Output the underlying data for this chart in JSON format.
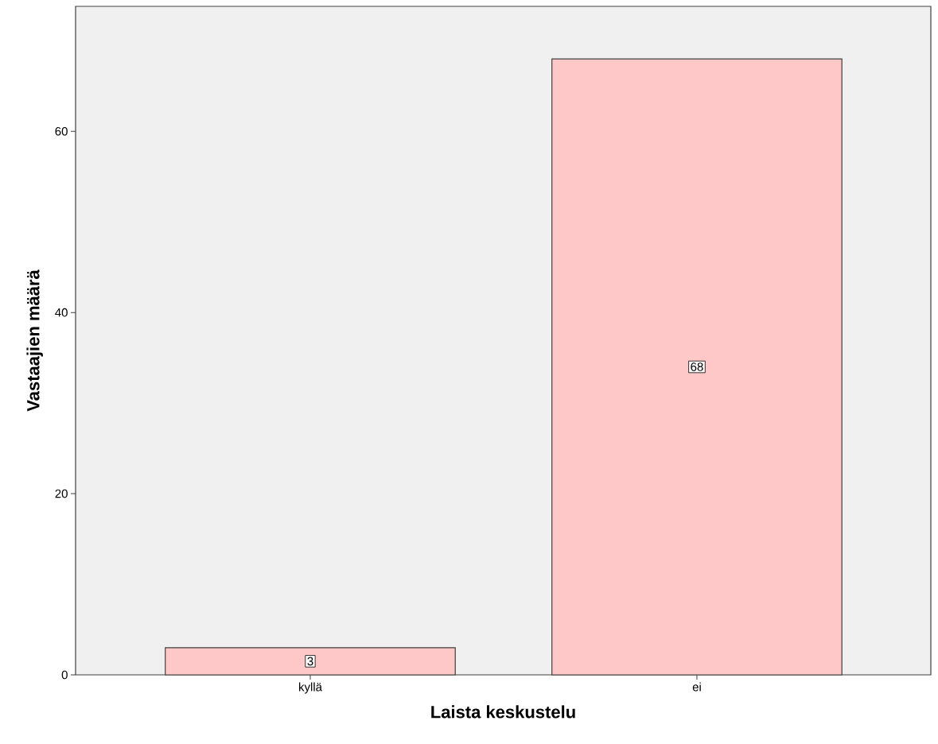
{
  "chart_data": {
    "type": "bar",
    "xlabel": "Laista keskustelu",
    "ylabel": "Vastaajien määrä",
    "categories": [
      "kyllä",
      "ei"
    ],
    "values": [
      3,
      68
    ],
    "color": "#ffc8c8",
    "ylim": [
      0,
      73.8
    ],
    "yticks": [
      0,
      20,
      40,
      60
    ],
    "data_labels": true
  }
}
